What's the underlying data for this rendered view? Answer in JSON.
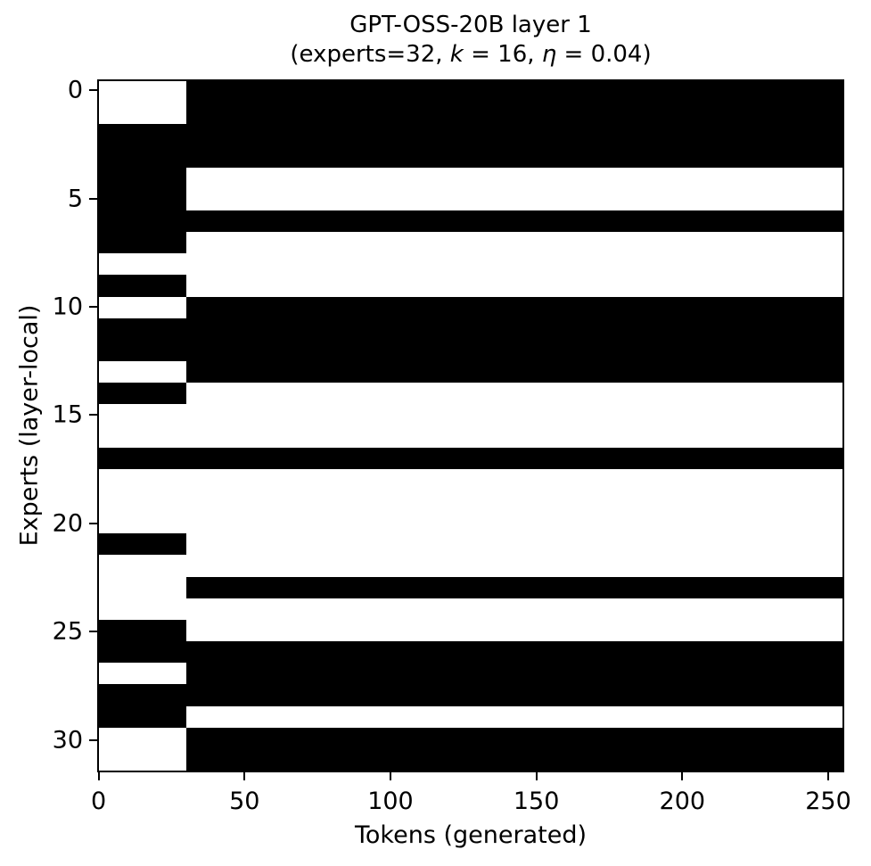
{
  "window": {
    "background": "#ffffff"
  },
  "chart_data": {
    "type": "heatmap",
    "title": "GPT-OSS-20B layer 1",
    "subtitle": "(experts=32, k = 16, η = 0.04)",
    "subtitle_segments": [
      {
        "text": "(experts=32, ",
        "italic": false
      },
      {
        "text": "k",
        "italic": true
      },
      {
        "text": " = 16, ",
        "italic": false
      },
      {
        "text": "η",
        "italic": true
      },
      {
        "text": " = 0.04)",
        "italic": false
      }
    ],
    "xlabel": "Tokens (generated)",
    "ylabel": "Experts (layer-local)",
    "x_ticks": [
      0,
      50,
      100,
      150,
      200,
      250
    ],
    "y_ticks": [
      0,
      5,
      10,
      15,
      20,
      25,
      30
    ],
    "x_range": [
      0,
      255
    ],
    "n_tokens": 256,
    "n_experts": 32,
    "grid": false,
    "legend": null,
    "colors": {
      "active": "#000000",
      "inactive": "#ffffff",
      "background": "#ffffff"
    },
    "encoding": {
      "black": "expert active",
      "white": "expert inactive"
    },
    "left_block": {
      "token_start": 0,
      "token_end": 29
    },
    "right_block": {
      "token_start": 30,
      "token_end": 255
    },
    "active_count_per_block": 16,
    "prompt_active": [
      0,
      0,
      1,
      1,
      1,
      1,
      1,
      1,
      0,
      1,
      0,
      1,
      1,
      0,
      1,
      0,
      0,
      1,
      0,
      0,
      0,
      1,
      0,
      0,
      0,
      1,
      1,
      0,
      1,
      1,
      0,
      0
    ],
    "generated_active": [
      1,
      1,
      1,
      1,
      0,
      0,
      1,
      0,
      0,
      0,
      1,
      1,
      1,
      1,
      0,
      0,
      0,
      1,
      0,
      0,
      0,
      0,
      0,
      1,
      0,
      0,
      1,
      1,
      1,
      0,
      1,
      1
    ]
  }
}
